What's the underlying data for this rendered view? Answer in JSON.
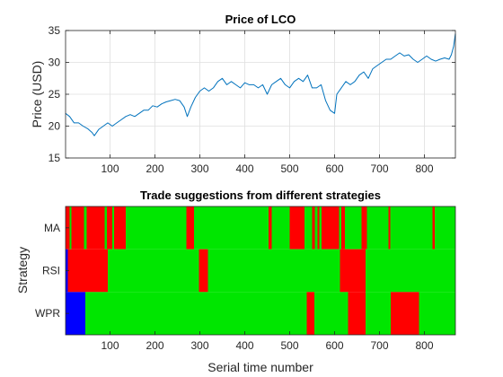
{
  "chart_data": [
    {
      "type": "line",
      "title": "Price of LCO",
      "xlabel": "",
      "ylabel": "Price (USD)",
      "xlim": [
        1,
        869
      ],
      "ylim": [
        15,
        35
      ],
      "xticks": [
        100,
        200,
        300,
        400,
        500,
        600,
        700,
        800
      ],
      "yticks": [
        15,
        20,
        25,
        30,
        35
      ],
      "grid": true,
      "color": "#0072BD",
      "series": [
        {
          "x": [
            1,
            10,
            20,
            30,
            40,
            50,
            60,
            65,
            75,
            85,
            95,
            105,
            115,
            125,
            135,
            145,
            155,
            165,
            175,
            185,
            195,
            205,
            215,
            225,
            235,
            245,
            255,
            265,
            272,
            280,
            290,
            300,
            310,
            320,
            330,
            340,
            350,
            360,
            370,
            380,
            390,
            400,
            410,
            420,
            430,
            440,
            450,
            460,
            470,
            480,
            490,
            500,
            510,
            520,
            530,
            540,
            550,
            560,
            570,
            580,
            590,
            600,
            605,
            615,
            625,
            635,
            645,
            655,
            665,
            675,
            685,
            695,
            705,
            715,
            725,
            735,
            745,
            755,
            765,
            775,
            785,
            795,
            805,
            815,
            825,
            835,
            845,
            855,
            860,
            865,
            869
          ],
          "y": [
            22,
            21.5,
            20.5,
            20.5,
            20,
            19.6,
            19,
            18.5,
            19.5,
            20,
            20.5,
            20,
            20.5,
            21,
            21.5,
            21.8,
            21.5,
            22,
            22.5,
            22.5,
            23.2,
            23,
            23.5,
            23.8,
            24,
            24.2,
            24,
            23,
            21.5,
            23,
            24.5,
            25.5,
            26,
            25.5,
            26,
            27,
            27.5,
            26.5,
            27,
            26.5,
            26,
            26.8,
            26.5,
            26.5,
            26,
            26.5,
            25,
            26.5,
            27,
            27.5,
            26.5,
            26,
            27,
            27.5,
            27,
            28,
            26,
            26,
            26.5,
            24,
            22.5,
            22,
            25,
            26,
            27,
            26.5,
            27,
            28,
            28.5,
            27.5,
            29,
            29.5,
            30,
            30.5,
            30.5,
            31,
            31.5,
            31,
            31.2,
            30.5,
            30,
            30.5,
            31,
            30.5,
            30.2,
            30.5,
            30.7,
            30.5,
            31.2,
            32.5,
            34.5
          ]
        }
      ]
    },
    {
      "type": "heatmap",
      "title": "Trade suggestions from different strategies",
      "xlabel": "Serial time number",
      "ylabel": "Strategy",
      "xlim": [
        1,
        869
      ],
      "xticks": [
        100,
        200,
        300,
        400,
        500,
        600,
        700,
        800
      ],
      "categories": [
        "MA",
        "RSI",
        "WPR"
      ],
      "colors": {
        "buy": "#00E600",
        "sell": "#FF0000",
        "none": "#0000FF"
      },
      "series": [
        {
          "name": "MA",
          "segments": [
            {
              "start": 1,
              "end": 10,
              "state": "sell"
            },
            {
              "start": 10,
              "end": 14,
              "state": "buy"
            },
            {
              "start": 14,
              "end": 42,
              "state": "sell"
            },
            {
              "start": 42,
              "end": 48,
              "state": "buy"
            },
            {
              "start": 48,
              "end": 88,
              "state": "sell"
            },
            {
              "start": 88,
              "end": 93,
              "state": "buy"
            },
            {
              "start": 93,
              "end": 105,
              "state": "sell"
            },
            {
              "start": 105,
              "end": 109,
              "state": "buy"
            },
            {
              "start": 109,
              "end": 135,
              "state": "sell"
            },
            {
              "start": 135,
              "end": 270,
              "state": "buy"
            },
            {
              "start": 270,
              "end": 287,
              "state": "sell"
            },
            {
              "start": 287,
              "end": 453,
              "state": "buy"
            },
            {
              "start": 453,
              "end": 460,
              "state": "sell"
            },
            {
              "start": 460,
              "end": 500,
              "state": "buy"
            },
            {
              "start": 500,
              "end": 533,
              "state": "sell"
            },
            {
              "start": 533,
              "end": 550,
              "state": "buy"
            },
            {
              "start": 550,
              "end": 556,
              "state": "sell"
            },
            {
              "start": 556,
              "end": 562,
              "state": "buy"
            },
            {
              "start": 562,
              "end": 566,
              "state": "sell"
            },
            {
              "start": 566,
              "end": 571,
              "state": "buy"
            },
            {
              "start": 571,
              "end": 610,
              "state": "sell"
            },
            {
              "start": 610,
              "end": 615,
              "state": "buy"
            },
            {
              "start": 615,
              "end": 623,
              "state": "sell"
            },
            {
              "start": 623,
              "end": 660,
              "state": "buy"
            },
            {
              "start": 660,
              "end": 672,
              "state": "sell"
            },
            {
              "start": 672,
              "end": 720,
              "state": "buy"
            },
            {
              "start": 720,
              "end": 724,
              "state": "sell"
            },
            {
              "start": 724,
              "end": 818,
              "state": "buy"
            },
            {
              "start": 818,
              "end": 823,
              "state": "sell"
            },
            {
              "start": 823,
              "end": 869,
              "state": "buy"
            }
          ]
        },
        {
          "name": "RSI",
          "segments": [
            {
              "start": 1,
              "end": 6,
              "state": "none"
            },
            {
              "start": 6,
              "end": 95,
              "state": "sell"
            },
            {
              "start": 95,
              "end": 298,
              "state": "buy"
            },
            {
              "start": 298,
              "end": 318,
              "state": "sell"
            },
            {
              "start": 318,
              "end": 612,
              "state": "buy"
            },
            {
              "start": 612,
              "end": 669,
              "state": "sell"
            },
            {
              "start": 669,
              "end": 869,
              "state": "buy"
            }
          ]
        },
        {
          "name": "WPR",
          "segments": [
            {
              "start": 1,
              "end": 45,
              "state": "none"
            },
            {
              "start": 45,
              "end": 538,
              "state": "buy"
            },
            {
              "start": 538,
              "end": 555,
              "state": "sell"
            },
            {
              "start": 555,
              "end": 630,
              "state": "buy"
            },
            {
              "start": 630,
              "end": 669,
              "state": "sell"
            },
            {
              "start": 669,
              "end": 725,
              "state": "buy"
            },
            {
              "start": 725,
              "end": 788,
              "state": "sell"
            },
            {
              "start": 788,
              "end": 869,
              "state": "buy"
            }
          ]
        }
      ]
    }
  ]
}
